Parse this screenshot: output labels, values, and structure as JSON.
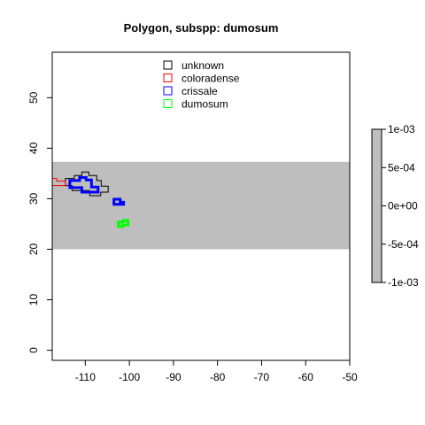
{
  "chart_data": {
    "type": "map",
    "title": "Polygon, subspp: dumosum",
    "xlim": [
      -117.5,
      -50
    ],
    "ylim": [
      -2,
      59
    ],
    "x_ticks": [
      -110,
      -100,
      -90,
      -80,
      -70,
      -60,
      -50
    ],
    "y_ticks": [
      0,
      10,
      20,
      30,
      40,
      50
    ],
    "grid": false,
    "band": {
      "ymin": 20,
      "ymax": 37.3,
      "color": "#bebebe"
    },
    "legend": {
      "placement": "top-center",
      "entries": [
        {
          "label": "unknown",
          "color": "#000000"
        },
        {
          "label": "coloradense",
          "color": "#ff0000"
        },
        {
          "label": "crissale",
          "color": "#0000ff"
        },
        {
          "label": "dumosum",
          "color": "#00ff00"
        }
      ]
    },
    "series": [
      {
        "name": "unknown",
        "color": "#000000",
        "line_width": 1,
        "polygons": [
          [
            [
              -114.5,
              34
            ],
            [
              -112.5,
              34
            ],
            [
              -112.5,
              34.6
            ],
            [
              -110.8,
              34.6
            ],
            [
              -110.8,
              35.3
            ],
            [
              -109.2,
              35.3
            ],
            [
              -109.2,
              34.6
            ],
            [
              -107.4,
              34.6
            ],
            [
              -107.4,
              33.6
            ],
            [
              -106.4,
              33.6
            ],
            [
              -106.4,
              32.5
            ],
            [
              -104.8,
              32.5
            ],
            [
              -104.8,
              31.3
            ],
            [
              -106.5,
              31.3
            ],
            [
              -106.5,
              30.6
            ],
            [
              -109,
              30.6
            ],
            [
              -109,
              31.6
            ],
            [
              -113,
              31.6
            ],
            [
              -113,
              32.6
            ],
            [
              -114.5,
              32.6
            ],
            [
              -114.5,
              34
            ]
          ]
        ]
      },
      {
        "name": "coloradense",
        "color": "#ff0000",
        "line_width": 1,
        "polygons": [
          [
            [
              -117.5,
              34
            ],
            [
              -116.5,
              34
            ],
            [
              -116.5,
              33.5
            ],
            [
              -114.5,
              33.5
            ],
            [
              -114.5,
              32.6
            ],
            [
              -117.5,
              32.6
            ]
          ]
        ]
      },
      {
        "name": "crissale",
        "color": "#0000ff",
        "line_width": 3,
        "polygons": [
          [
            [
              -113.5,
              33.6
            ],
            [
              -111.3,
              33.6
            ],
            [
              -111.3,
              34.2
            ],
            [
              -109.8,
              34.2
            ],
            [
              -109.8,
              33.7
            ],
            [
              -108.6,
              33.7
            ],
            [
              -108.6,
              32.3
            ],
            [
              -107.1,
              32.3
            ],
            [
              -107.1,
              31.3
            ],
            [
              -110.8,
              31.3
            ],
            [
              -110.8,
              32.2
            ],
            [
              -113.5,
              32.2
            ],
            [
              -113.5,
              33.6
            ]
          ],
          [
            [
              -103.5,
              29.9
            ],
            [
              -102.1,
              29.9
            ],
            [
              -102.1,
              29.3
            ],
            [
              -101.3,
              29.3
            ],
            [
              -101.3,
              28.9
            ],
            [
              -103.5,
              28.9
            ],
            [
              -103.5,
              29.9
            ]
          ]
        ]
      },
      {
        "name": "dumosum",
        "color": "#00ff00",
        "line_width": 3,
        "polygons": [
          [
            [
              -102.5,
              25.4
            ],
            [
              -101.4,
              25.4
            ],
            [
              -101.4,
              25.7
            ],
            [
              -100.3,
              25.7
            ],
            [
              -100.3,
              24.8
            ],
            [
              -101.5,
              24.8
            ],
            [
              -101.5,
              24.5
            ],
            [
              -102.5,
              24.5
            ],
            [
              -102.5,
              25.4
            ]
          ]
        ]
      }
    ],
    "colorbar": {
      "fill": "#bebebe",
      "min": -0.001,
      "max": 0.001,
      "tick_values": [
        0.001,
        0.0005,
        0,
        -0.0005,
        -0.001
      ],
      "tick_labels": [
        "1e-03",
        "5e-04",
        "0e+00",
        "-5e-04",
        "-1e-03"
      ]
    }
  }
}
